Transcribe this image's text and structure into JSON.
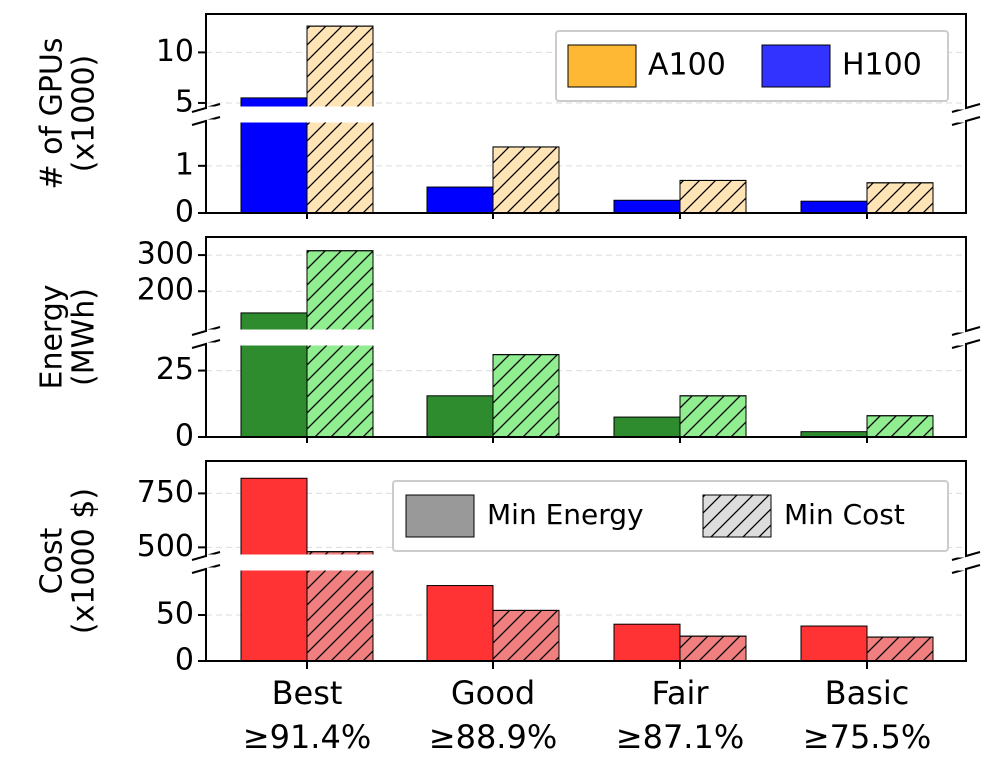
{
  "chart_data": {
    "type": "bar",
    "categories": [
      "Best",
      "Good",
      "Fair",
      "Basic"
    ],
    "category_thresholds": [
      "≥91.4%",
      "≥88.9%",
      "≥87.1%",
      "≥75.5%"
    ],
    "panels": [
      {
        "id": "gpus",
        "ylabel_lines": [
          "# of GPUs",
          "(x1000)"
        ],
        "broken_axis": true,
        "upper_ylim": [
          4.5,
          13.8
        ],
        "upper_ticks": [
          5,
          10
        ],
        "lower_ylim": [
          0,
          1.95
        ],
        "lower_ticks": [
          0,
          1
        ],
        "series": [
          {
            "name": "H100",
            "role": "Min Energy",
            "color": "#0000ff",
            "hatch": false,
            "values": [
              5.5,
              0.55,
              0.27,
              0.25
            ]
          },
          {
            "name": "A100",
            "role": "Min Cost",
            "color": "#ffe4b5",
            "hatch": true,
            "values": [
              12.6,
              1.4,
              0.69,
              0.64
            ]
          }
        ]
      },
      {
        "id": "energy",
        "ylabel_lines": [
          "Energy",
          "(MWh)"
        ],
        "broken_axis": true,
        "upper_ylim": [
          90,
          350
        ],
        "upper_ticks": [
          200,
          300
        ],
        "lower_ylim": [
          0,
          35
        ],
        "lower_ticks": [
          0,
          25
        ],
        "series": [
          {
            "name": "Min Energy",
            "color": "#2e8b2e",
            "hatch": false,
            "values": [
              140,
              15.5,
              7.5,
              2
            ]
          },
          {
            "name": "Min Cost",
            "color": "#90ee90",
            "hatch": true,
            "values": [
              312,
              31,
              15.5,
              8
            ]
          }
        ]
      },
      {
        "id": "cost",
        "ylabel_lines": [
          "Cost",
          "(x1000 $)"
        ],
        "broken_axis": true,
        "upper_ylim": [
          460,
          900
        ],
        "upper_ticks": [
          500,
          750
        ],
        "lower_ylim": [
          0,
          100
        ],
        "lower_ticks": [
          0,
          50
        ],
        "series": [
          {
            "name": "Min Energy",
            "color": "#ff3333",
            "hatch": false,
            "values": [
              820,
              82,
              40,
              38
            ]
          },
          {
            "name": "Min Cost",
            "color": "#f08080",
            "hatch": true,
            "values": [
              480,
              55,
              27,
              26
            ]
          }
        ]
      }
    ],
    "legends": [
      {
        "panel": "gpus",
        "placement": "top-right",
        "entries": [
          {
            "label": "A100",
            "color": "#ffb833",
            "hatch": false
          },
          {
            "label": "H100",
            "color": "#3333ff",
            "hatch": false
          }
        ]
      },
      {
        "panel": "cost",
        "placement": "top-right",
        "entries": [
          {
            "label": "Min Energy",
            "color": "#999999",
            "hatch": false
          },
          {
            "label": "Min Cost",
            "color": "#dddddd",
            "hatch": true
          }
        ]
      }
    ]
  }
}
